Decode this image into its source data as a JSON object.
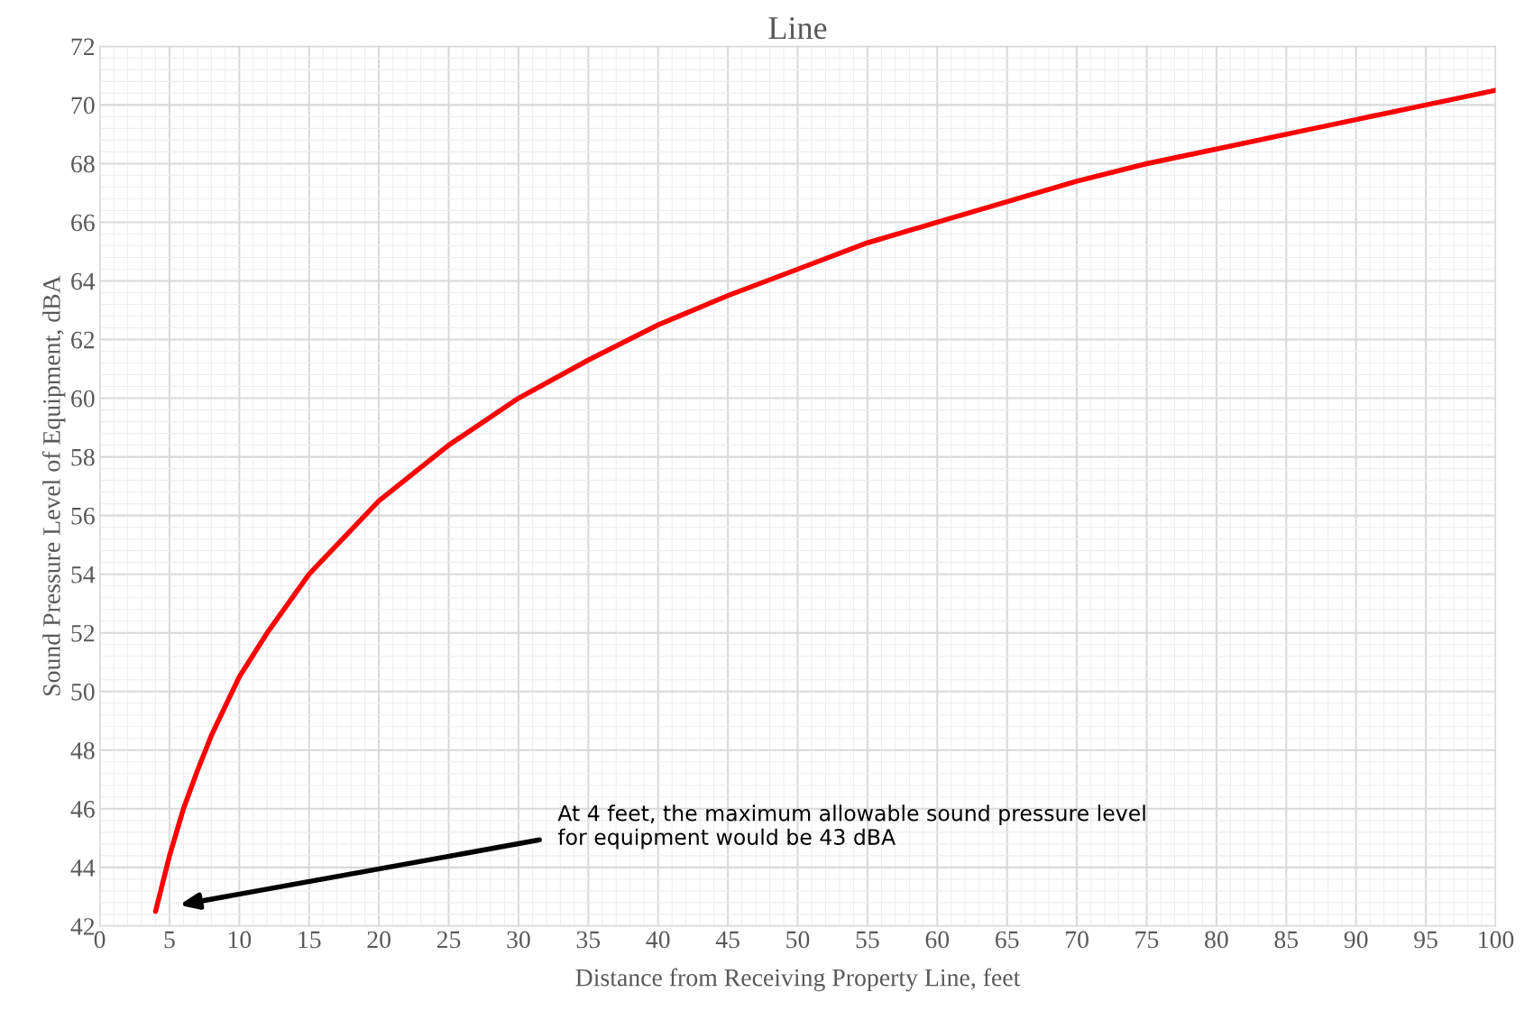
{
  "chart_data": {
    "type": "line",
    "title": "Line",
    "xlabel": "Distance from Receiving Property Line, feet",
    "ylabel": "Sound Pressure Level of Equipment, dBA",
    "series": [
      {
        "color": "#ff0000",
        "x": [
          4,
          5,
          6,
          7,
          8,
          10,
          12,
          15,
          20,
          25,
          30,
          35,
          40,
          45,
          50,
          55,
          60,
          65,
          70,
          75,
          80,
          85,
          90,
          95,
          100
        ],
        "values": [
          42.5,
          44.4,
          46.0,
          47.3,
          48.5,
          50.5,
          52.0,
          54.0,
          56.5,
          58.4,
          60.0,
          61.3,
          62.5,
          63.5,
          64.4,
          65.3,
          66.0,
          66.7,
          67.4,
          68.0,
          68.5,
          69.0,
          69.5,
          70.0,
          70.5
        ]
      }
    ],
    "xlim": [
      0,
      100
    ],
    "xticks": [
      0,
      5,
      10,
      15,
      20,
      25,
      30,
      35,
      40,
      45,
      50,
      55,
      60,
      65,
      70,
      75,
      80,
      85,
      90,
      95,
      100
    ],
    "ylim": [
      42,
      72
    ],
    "yticks": [
      42,
      44,
      46,
      48,
      50,
      52,
      54,
      56,
      58,
      60,
      62,
      64,
      66,
      68,
      70,
      72
    ],
    "grid": true,
    "marker": "none",
    "line_style": "solid",
    "legend": false,
    "annotations": [
      "At 4 feet, the maximum allowable sound pressure level\nfor equipment would be 43 dBA"
    ]
  }
}
